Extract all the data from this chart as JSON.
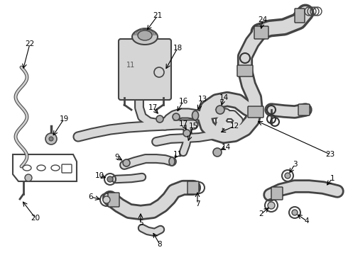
{
  "background_color": "#ffffff",
  "line_color": "#000000",
  "fig_width": 4.9,
  "fig_height": 3.6,
  "dpi": 100,
  "hose_fill": "#d0d0d0",
  "hose_edge": "#404040",
  "label_fontsize": 7.5
}
